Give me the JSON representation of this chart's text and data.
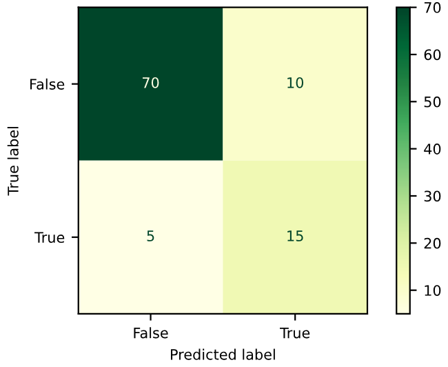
{
  "chart_data": {
    "type": "heatmap",
    "xlabel": "Predicted label",
    "ylabel": "True label",
    "categories": [
      "False",
      "True"
    ],
    "y_categories": [
      "False",
      "True"
    ],
    "cells": [
      [
        70,
        10
      ],
      [
        5,
        15
      ]
    ],
    "data_labels": true,
    "clim": [
      5,
      70
    ],
    "cticks": [
      10,
      20,
      30,
      40,
      50,
      60,
      70
    ]
  }
}
